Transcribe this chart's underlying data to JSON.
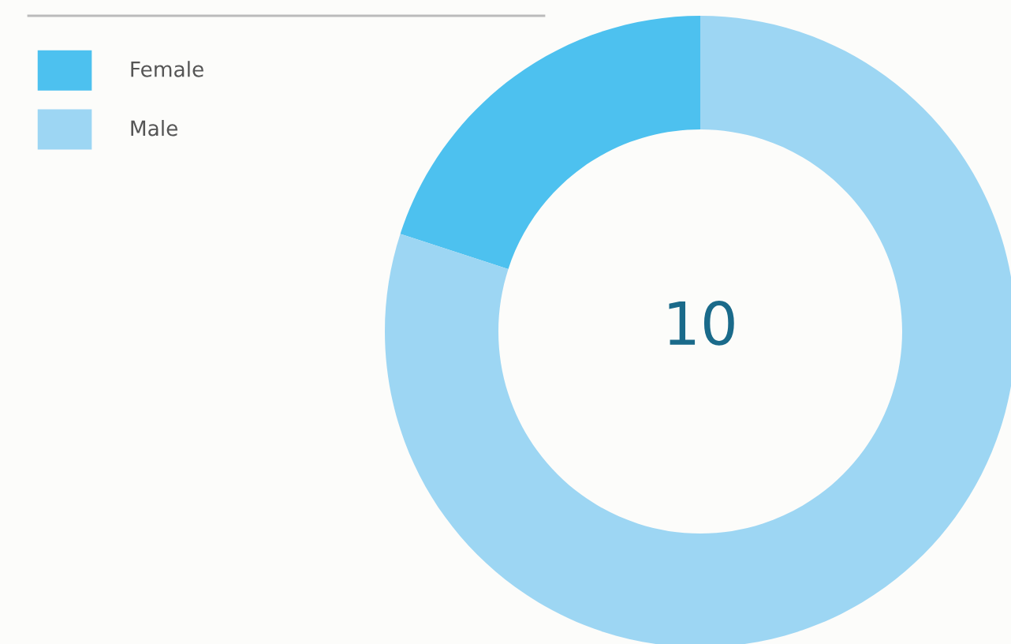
{
  "chart_data": {
    "type": "donut",
    "categories": [
      "Female",
      "Male"
    ],
    "values": [
      20,
      80
    ],
    "colors": [
      "#4dc1ef",
      "#9dd6f3"
    ],
    "legend": "top left",
    "annotations": [
      "10"
    ]
  }
}
